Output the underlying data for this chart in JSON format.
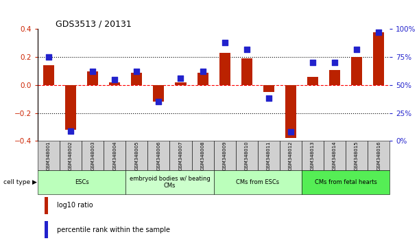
{
  "title": "GDS3513 / 20131",
  "samples": [
    "GSM348001",
    "GSM348002",
    "GSM348003",
    "GSM348004",
    "GSM348005",
    "GSM348006",
    "GSM348007",
    "GSM348008",
    "GSM348009",
    "GSM348010",
    "GSM348011",
    "GSM348012",
    "GSM348013",
    "GSM348014",
    "GSM348015",
    "GSM348016"
  ],
  "log10_ratio": [
    0.14,
    -0.32,
    0.1,
    0.02,
    0.09,
    -0.12,
    0.02,
    0.09,
    0.23,
    0.19,
    -0.05,
    -0.38,
    0.06,
    0.11,
    0.2,
    0.38
  ],
  "percentile_rank": [
    75,
    9,
    62,
    55,
    62,
    35,
    56,
    62,
    88,
    82,
    38,
    8,
    70,
    70,
    82,
    97
  ],
  "bar_color": "#bb2200",
  "dot_color": "#2222cc",
  "cell_type_groups": [
    {
      "label": "ESCs",
      "start": 0,
      "end": 3,
      "color": "#bbffbb"
    },
    {
      "label": "embryoid bodies w/ beating\nCMs",
      "start": 4,
      "end": 7,
      "color": "#ccffcc"
    },
    {
      "label": "CMs from ESCs",
      "start": 8,
      "end": 11,
      "color": "#bbffbb"
    },
    {
      "label": "CMs from fetal hearts",
      "start": 12,
      "end": 15,
      "color": "#55ee55"
    }
  ],
  "ylim_left": [
    -0.4,
    0.4
  ],
  "ylim_right": [
    0,
    100
  ],
  "yticks_left": [
    -0.4,
    -0.2,
    0.0,
    0.2,
    0.4
  ],
  "yticks_right": [
    0,
    25,
    50,
    75,
    100
  ],
  "ytick_labels_right": [
    "0%",
    "25%",
    "50%",
    "75%",
    "100%"
  ],
  "hlines": [
    0.2,
    0.0,
    -0.2
  ],
  "hline_styles": [
    "dotted",
    "dashed",
    "dotted"
  ],
  "hline_colors": [
    "black",
    "red",
    "black"
  ],
  "left_ylabel_color": "#cc2200",
  "right_ylabel_color": "#2222cc",
  "cell_type_label": "cell type",
  "legend_log10": "log10 ratio",
  "legend_percentile": "percentile rank within the sample",
  "bar_width": 0.5,
  "dot_size": 30
}
